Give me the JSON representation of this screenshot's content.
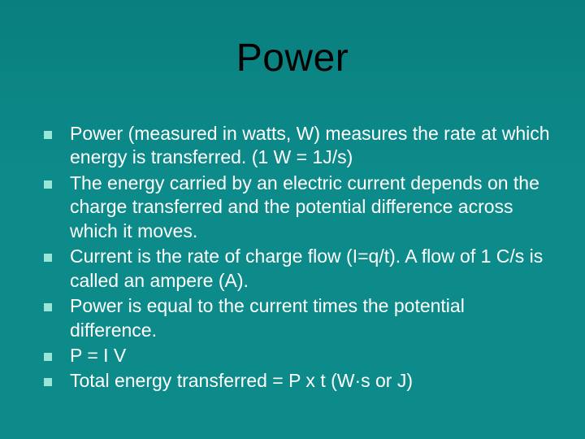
{
  "slide": {
    "title": "Power",
    "bullets": [
      "Power (measured in watts, W) measures the rate at which energy is transferred. (1 W = 1J/s)",
      "The energy carried by an electric current depends on the charge transferred and the potential difference across which it moves.",
      "Current is the rate of charge flow (I=q/t). A flow of 1 C/s is called an ampere (A).",
      "Power is equal to the current times the potential difference.",
      "P = I V",
      "Total energy transferred = P x t   (W·s  or  J)"
    ],
    "background_color": "#0d8a8a",
    "title_color": "#000000",
    "text_color": "#ffffff",
    "bullet_color": "#99e6d9",
    "title_fontsize": 48,
    "body_fontsize": 23
  }
}
